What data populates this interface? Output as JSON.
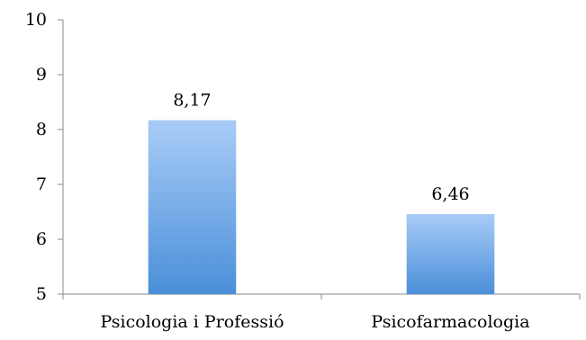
{
  "chart_data": {
    "type": "bar",
    "categories": [
      "Psicologia i Professió",
      "Psicofarmacologia"
    ],
    "values": [
      8.17,
      6.46
    ],
    "data_labels": [
      "8,17",
      "6,46"
    ],
    "y_ticks": [
      5,
      6,
      7,
      8,
      9,
      10
    ],
    "ylim": [
      5,
      10
    ],
    "grid": false,
    "legend": "none",
    "bar_color_top": "#a9ccf7",
    "bar_color_bottom": "#4a8fd9"
  }
}
